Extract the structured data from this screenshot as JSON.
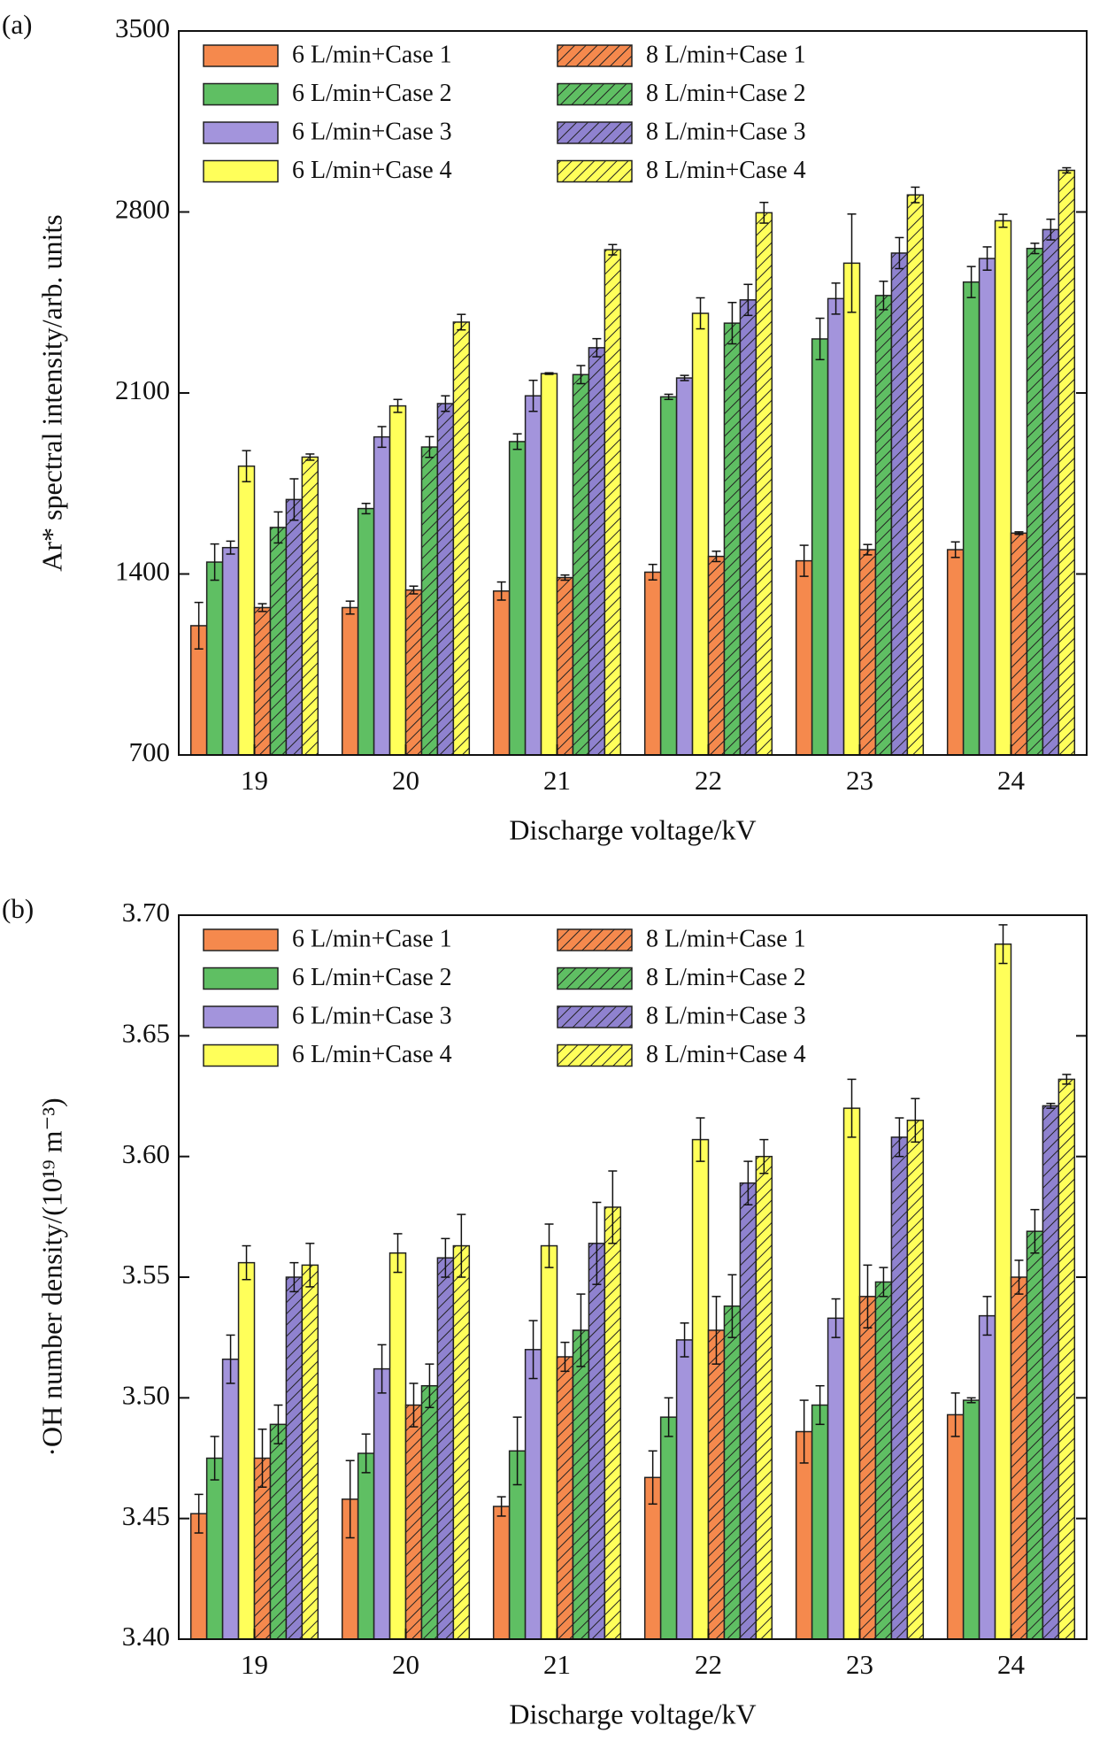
{
  "chart_data": [
    {
      "type": "bar",
      "panel_label": "(a)",
      "x_label": "Discharge voltage/kV",
      "y_label": "Ar* spectral intensity/arb. units",
      "categories": [
        "19",
        "20",
        "21",
        "22",
        "23",
        "24"
      ],
      "ylim": [
        700,
        3500
      ],
      "yticks": [
        700,
        1400,
        2100,
        2800,
        3500
      ],
      "series": [
        {
          "name": "6 L/min+Case 1",
          "color": "#f5894d",
          "hatch": false,
          "values": [
            1200,
            1270,
            1334,
            1407,
            1451,
            1494
          ],
          "errors": [
            90,
            25,
            35,
            30,
            60,
            30
          ]
        },
        {
          "name": "6 L/min+Case 2",
          "color": "#5fbf63",
          "hatch": false,
          "values": [
            1446,
            1653,
            1912,
            2085,
            2309,
            2529
          ],
          "errors": [
            70,
            20,
            30,
            10,
            80,
            60
          ]
        },
        {
          "name": "6 L/min+Case 3",
          "color": "#a394dc",
          "hatch": false,
          "values": [
            1502,
            1930,
            2089,
            2158,
            2465,
            2620
          ],
          "errors": [
            25,
            40,
            60,
            10,
            60,
            45
          ]
        },
        {
          "name": "6 L/min+Case 4",
          "color": "#ffff5a",
          "hatch": false,
          "values": [
            1817,
            2050,
            2175,
            2408,
            2602,
            2766
          ],
          "errors": [
            60,
            25,
            3,
            60,
            190,
            25
          ]
        },
        {
          "name": "8 L/min+Case 1",
          "color": "#f5894d",
          "hatch": true,
          "values": [
            1270,
            1338,
            1386,
            1468,
            1494,
            1558
          ],
          "errors": [
            15,
            15,
            10,
            20,
            20,
            5
          ]
        },
        {
          "name": "8 L/min+Case 2",
          "color": "#5fbf63",
          "hatch": true,
          "values": [
            1580,
            1891,
            2171,
            2370,
            2477,
            2659
          ],
          "errors": [
            60,
            40,
            35,
            80,
            55,
            20
          ]
        },
        {
          "name": "8 L/min+Case 3",
          "color": "#8f82cf",
          "hatch": true,
          "values": [
            1688,
            2059,
            2275,
            2460,
            2641,
            2732
          ],
          "errors": [
            80,
            30,
            35,
            60,
            60,
            40
          ]
        },
        {
          "name": "8 L/min+Case 4",
          "color": "#ffff5a",
          "hatch": true,
          "values": [
            1852,
            2374,
            2654,
            2797,
            2866,
            2961
          ],
          "errors": [
            12,
            30,
            20,
            40,
            30,
            10
          ]
        }
      ]
    },
    {
      "type": "bar",
      "panel_label": "(b)",
      "x_label": "Discharge voltage/kV",
      "y_label": "·OH number density/(10¹⁹ m⁻³)",
      "categories": [
        "19",
        "20",
        "21",
        "22",
        "23",
        "24"
      ],
      "ylim": [
        3.4,
        3.7
      ],
      "yticks": [
        {
          "value": 3.4,
          "label": "3.40"
        },
        {
          "value": 3.45,
          "label": "3.45"
        },
        {
          "value": 3.5,
          "label": "3.50"
        },
        {
          "value": 3.55,
          "label": "3.55"
        },
        {
          "value": 3.6,
          "label": "3.60"
        },
        {
          "value": 3.65,
          "label": "3.65"
        },
        {
          "value": 3.7,
          "label": "3.70"
        }
      ],
      "series": [
        {
          "name": "6 L/min+Case 1",
          "color": "#f5894d",
          "hatch": false,
          "values": [
            3.452,
            3.458,
            3.455,
            3.467,
            3.486,
            3.493
          ],
          "errors": [
            0.008,
            0.016,
            0.004,
            0.011,
            0.013,
            0.009
          ]
        },
        {
          "name": "6 L/min+Case 2",
          "color": "#5fbf63",
          "hatch": false,
          "values": [
            3.475,
            3.477,
            3.478,
            3.492,
            3.497,
            3.499
          ],
          "errors": [
            0.009,
            0.008,
            0.014,
            0.008,
            0.008,
            0.001
          ]
        },
        {
          "name": "6 L/min+Case 3",
          "color": "#a394dc",
          "hatch": false,
          "values": [
            3.516,
            3.512,
            3.52,
            3.524,
            3.533,
            3.534
          ],
          "errors": [
            0.01,
            0.01,
            0.012,
            0.007,
            0.008,
            0.008
          ]
        },
        {
          "name": "6 L/min+Case 4",
          "color": "#ffff5a",
          "hatch": false,
          "values": [
            3.556,
            3.56,
            3.563,
            3.607,
            3.62,
            3.688
          ],
          "errors": [
            0.007,
            0.008,
            0.009,
            0.009,
            0.012,
            0.008
          ]
        },
        {
          "name": "8 L/min+Case 1",
          "color": "#f5894d",
          "hatch": true,
          "values": [
            3.475,
            3.497,
            3.517,
            3.528,
            3.542,
            3.55
          ],
          "errors": [
            0.012,
            0.009,
            0.006,
            0.014,
            0.013,
            0.007
          ]
        },
        {
          "name": "8 L/min+Case 2",
          "color": "#5fbf63",
          "hatch": true,
          "values": [
            3.489,
            3.505,
            3.528,
            3.538,
            3.548,
            3.569
          ],
          "errors": [
            0.008,
            0.009,
            0.015,
            0.013,
            0.006,
            0.009
          ]
        },
        {
          "name": "8 L/min+Case 3",
          "color": "#8f82cf",
          "hatch": true,
          "values": [
            3.55,
            3.558,
            3.564,
            3.589,
            3.608,
            3.621
          ],
          "errors": [
            0.006,
            0.008,
            0.017,
            0.009,
            0.008,
            0.001
          ]
        },
        {
          "name": "8 L/min+Case 4",
          "color": "#ffff5a",
          "hatch": true,
          "values": [
            3.555,
            3.563,
            3.579,
            3.6,
            3.615,
            3.632
          ],
          "errors": [
            0.009,
            0.013,
            0.015,
            0.007,
            0.009,
            0.002
          ]
        }
      ]
    }
  ]
}
